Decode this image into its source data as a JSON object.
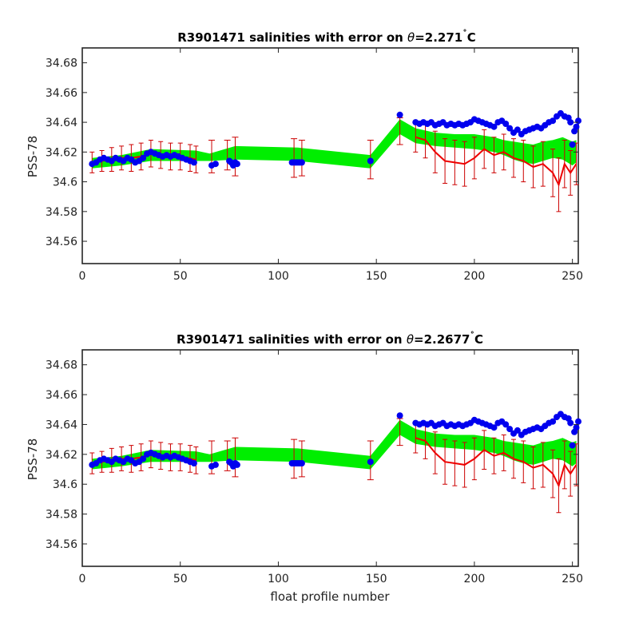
{
  "figure": {
    "xlabel": "float profile number"
  },
  "colors": {
    "green": "#00ee00",
    "red": "#ee0000",
    "blue": "#0000ee",
    "errorbar": "#cc0000"
  },
  "chart_data": [
    {
      "type": "line",
      "title": "R3901471 salinities with error on θ=2.271˚C",
      "title_parts": {
        "prefix": "R3901471 salinities with error on ",
        "theta": "θ",
        "value": "=2.271",
        "degree": "˚",
        "unit": "C"
      },
      "ylabel": "PSS-78",
      "xlim": [
        0,
        253
      ],
      "ylim": [
        34.545,
        34.69
      ],
      "xticks": [
        0,
        50,
        100,
        150,
        200,
        250
      ],
      "yticks": [
        34.56,
        34.58,
        34.6,
        34.62,
        34.64,
        34.66,
        34.68
      ],
      "ytick_labels": [
        "34.56",
        "34.58",
        "34.6",
        "34.62",
        "34.64",
        "34.66",
        "34.68"
      ],
      "green_band": {
        "x": [
          5,
          20,
          35,
          58,
          65,
          78,
          110,
          147,
          162,
          170,
          180,
          190,
          200,
          210,
          215,
          220,
          225,
          230,
          235,
          240,
          245,
          250,
          252
        ],
        "upper": [
          34.616,
          34.618,
          34.622,
          34.621,
          34.619,
          34.624,
          34.623,
          34.618,
          34.642,
          34.636,
          34.633,
          34.632,
          34.632,
          34.63,
          34.628,
          34.627,
          34.626,
          34.625,
          34.627,
          34.628,
          34.63,
          34.627,
          34.628
        ],
        "lower": [
          34.609,
          34.611,
          34.614,
          34.614,
          34.614,
          34.615,
          34.614,
          34.609,
          34.632,
          34.626,
          34.624,
          34.623,
          34.622,
          34.62,
          34.618,
          34.615,
          34.613,
          34.612,
          34.614,
          34.616,
          34.615,
          34.611,
          34.613
        ]
      },
      "red_line": {
        "x": [
          5,
          10,
          15,
          20,
          25,
          30,
          35,
          40,
          45,
          50,
          55,
          58,
          170,
          175,
          180,
          185,
          190,
          195,
          200,
          205,
          210,
          215,
          220,
          225,
          230,
          235,
          240,
          243,
          246,
          249,
          252
        ],
        "y": [
          34.613,
          34.614,
          34.615,
          34.616,
          34.616,
          34.617,
          34.619,
          34.618,
          34.617,
          34.617,
          34.616,
          34.615,
          34.63,
          34.628,
          34.62,
          34.614,
          34.613,
          34.612,
          34.616,
          34.622,
          34.618,
          34.62,
          34.616,
          34.614,
          34.61,
          34.612,
          34.606,
          34.598,
          34.612,
          34.606,
          34.612
        ],
        "err": [
          0.007,
          0.007,
          0.008,
          0.008,
          0.009,
          0.009,
          0.009,
          0.009,
          0.009,
          0.009,
          0.009,
          0.009,
          0.01,
          0.012,
          0.014,
          0.015,
          0.015,
          0.015,
          0.014,
          0.013,
          0.012,
          0.012,
          0.013,
          0.014,
          0.014,
          0.015,
          0.016,
          0.018,
          0.016,
          0.015,
          0.014
        ]
      },
      "isolated_errorbars": [
        {
          "x": 66,
          "y": 34.617,
          "err": 0.011
        },
        {
          "x": 74,
          "y": 34.618,
          "err": 0.01
        },
        {
          "x": 78,
          "y": 34.617,
          "err": 0.013
        },
        {
          "x": 108,
          "y": 34.616,
          "err": 0.013
        },
        {
          "x": 112,
          "y": 34.616,
          "err": 0.012
        },
        {
          "x": 147,
          "y": 34.615,
          "err": 0.013
        },
        {
          "x": 162,
          "y": 34.634,
          "err": 0.009
        }
      ],
      "blue_points": {
        "x": [
          5,
          7,
          9,
          11,
          13,
          15,
          17,
          19,
          21,
          23,
          25,
          27,
          29,
          31,
          33,
          35,
          37,
          39,
          41,
          43,
          45,
          47,
          49,
          51,
          53,
          55,
          57,
          66,
          68,
          75,
          76,
          77,
          78,
          79,
          107,
          108,
          109,
          110,
          111,
          112,
          147,
          162,
          170,
          172,
          174,
          176,
          178,
          180,
          182,
          184,
          186,
          188,
          190,
          192,
          194,
          196,
          198,
          200,
          202,
          204,
          206,
          208,
          210,
          212,
          214,
          216,
          218,
          220,
          222,
          224,
          226,
          228,
          230,
          232,
          234,
          236,
          238,
          240,
          242,
          244,
          246,
          248,
          249,
          250,
          251,
          252,
          253
        ],
        "y": [
          34.612,
          34.613,
          34.615,
          34.616,
          34.615,
          34.614,
          34.616,
          34.615,
          34.614,
          34.616,
          34.615,
          34.613,
          34.614,
          34.616,
          34.619,
          34.62,
          34.619,
          34.618,
          34.617,
          34.618,
          34.617,
          34.618,
          34.617,
          34.616,
          34.615,
          34.614,
          34.613,
          34.611,
          34.612,
          34.614,
          34.613,
          34.611,
          34.613,
          34.612,
          34.613,
          34.613,
          34.613,
          34.613,
          34.613,
          34.613,
          34.614,
          34.645,
          34.64,
          34.639,
          34.64,
          34.639,
          34.64,
          34.638,
          34.639,
          34.64,
          34.638,
          34.639,
          34.638,
          34.639,
          34.638,
          34.639,
          34.64,
          34.642,
          34.641,
          34.64,
          34.639,
          34.638,
          34.637,
          34.64,
          34.641,
          34.639,
          34.636,
          34.633,
          34.635,
          34.632,
          34.634,
          34.635,
          34.636,
          34.637,
          34.636,
          34.638,
          34.64,
          34.641,
          34.644,
          34.646,
          34.644,
          34.643,
          34.64,
          34.625,
          34.634,
          34.637,
          34.641
        ]
      }
    },
    {
      "type": "line",
      "title": "R3901471 salinities with error on θ=2.2677˚C",
      "title_parts": {
        "prefix": "R3901471 salinities with error on ",
        "theta": "θ",
        "value": "=2.2677",
        "degree": "˚",
        "unit": "C"
      },
      "ylabel": "PSS-78",
      "xlabel": "float profile number",
      "xlim": [
        0,
        253
      ],
      "ylim": [
        34.545,
        34.69
      ],
      "xticks": [
        0,
        50,
        100,
        150,
        200,
        250
      ],
      "yticks": [
        34.56,
        34.58,
        34.6,
        34.62,
        34.64,
        34.66,
        34.68
      ],
      "ytick_labels": [
        "34.56",
        "34.58",
        "34.6",
        "34.62",
        "34.64",
        "34.66",
        "34.68"
      ],
      "green_band": {
        "x": [
          5,
          20,
          35,
          58,
          65,
          78,
          110,
          147,
          162,
          170,
          180,
          190,
          200,
          210,
          215,
          220,
          225,
          230,
          235,
          240,
          245,
          250,
          252
        ],
        "upper": [
          34.617,
          34.619,
          34.623,
          34.622,
          34.62,
          34.625,
          34.624,
          34.619,
          34.643,
          34.637,
          34.634,
          34.633,
          34.633,
          34.631,
          34.629,
          34.628,
          34.627,
          34.626,
          34.628,
          34.629,
          34.631,
          34.628,
          34.629
        ],
        "lower": [
          34.61,
          34.612,
          34.615,
          34.615,
          34.615,
          34.616,
          34.615,
          34.61,
          34.633,
          34.627,
          34.625,
          34.624,
          34.623,
          34.621,
          34.619,
          34.616,
          34.614,
          34.613,
          34.615,
          34.617,
          34.616,
          34.612,
          34.614
        ]
      },
      "red_line": {
        "x": [
          5,
          10,
          15,
          20,
          25,
          30,
          35,
          40,
          45,
          50,
          55,
          58,
          170,
          175,
          180,
          185,
          190,
          195,
          200,
          205,
          210,
          215,
          220,
          225,
          230,
          235,
          240,
          243,
          246,
          249,
          252
        ],
        "y": [
          34.614,
          34.615,
          34.616,
          34.617,
          34.617,
          34.618,
          34.62,
          34.619,
          34.618,
          34.618,
          34.617,
          34.616,
          34.631,
          34.629,
          34.621,
          34.615,
          34.614,
          34.613,
          34.617,
          34.623,
          34.619,
          34.621,
          34.617,
          34.615,
          34.611,
          34.613,
          34.607,
          34.599,
          34.613,
          34.607,
          34.613
        ],
        "err": [
          0.007,
          0.007,
          0.008,
          0.008,
          0.009,
          0.009,
          0.009,
          0.009,
          0.009,
          0.009,
          0.009,
          0.009,
          0.01,
          0.012,
          0.014,
          0.015,
          0.015,
          0.015,
          0.014,
          0.013,
          0.012,
          0.012,
          0.013,
          0.014,
          0.014,
          0.015,
          0.016,
          0.018,
          0.016,
          0.015,
          0.014
        ]
      },
      "isolated_errorbars": [
        {
          "x": 66,
          "y": 34.618,
          "err": 0.011
        },
        {
          "x": 74,
          "y": 34.619,
          "err": 0.01
        },
        {
          "x": 78,
          "y": 34.618,
          "err": 0.013
        },
        {
          "x": 108,
          "y": 34.617,
          "err": 0.013
        },
        {
          "x": 112,
          "y": 34.617,
          "err": 0.012
        },
        {
          "x": 147,
          "y": 34.616,
          "err": 0.013
        },
        {
          "x": 162,
          "y": 34.635,
          "err": 0.009
        }
      ],
      "blue_points": {
        "x": [
          5,
          7,
          9,
          11,
          13,
          15,
          17,
          19,
          21,
          23,
          25,
          27,
          29,
          31,
          33,
          35,
          37,
          39,
          41,
          43,
          45,
          47,
          49,
          51,
          53,
          55,
          57,
          66,
          68,
          75,
          76,
          77,
          78,
          79,
          107,
          108,
          109,
          110,
          111,
          112,
          147,
          162,
          170,
          172,
          174,
          176,
          178,
          180,
          182,
          184,
          186,
          188,
          190,
          192,
          194,
          196,
          198,
          200,
          202,
          204,
          206,
          208,
          210,
          212,
          214,
          216,
          218,
          220,
          222,
          224,
          226,
          228,
          230,
          232,
          234,
          236,
          238,
          240,
          242,
          244,
          246,
          248,
          249,
          250,
          251,
          252,
          253
        ],
        "y": [
          34.613,
          34.614,
          34.616,
          34.617,
          34.616,
          34.615,
          34.617,
          34.616,
          34.615,
          34.617,
          34.616,
          34.614,
          34.615,
          34.617,
          34.62,
          34.621,
          34.62,
          34.619,
          34.618,
          34.619,
          34.618,
          34.619,
          34.618,
          34.617,
          34.616,
          34.615,
          34.614,
          34.612,
          34.613,
          34.615,
          34.614,
          34.612,
          34.614,
          34.613,
          34.614,
          34.614,
          34.614,
          34.614,
          34.614,
          34.614,
          34.615,
          34.646,
          34.641,
          34.64,
          34.641,
          34.64,
          34.641,
          34.639,
          34.64,
          34.641,
          34.639,
          34.64,
          34.639,
          34.64,
          34.639,
          34.64,
          34.641,
          34.643,
          34.642,
          34.641,
          34.64,
          34.639,
          34.638,
          34.641,
          34.642,
          34.64,
          34.637,
          34.634,
          34.636,
          34.633,
          34.635,
          34.636,
          34.637,
          34.638,
          34.637,
          34.639,
          34.641,
          34.642,
          34.645,
          34.647,
          34.645,
          34.644,
          34.641,
          34.626,
          34.635,
          34.638,
          34.642
        ]
      }
    }
  ]
}
